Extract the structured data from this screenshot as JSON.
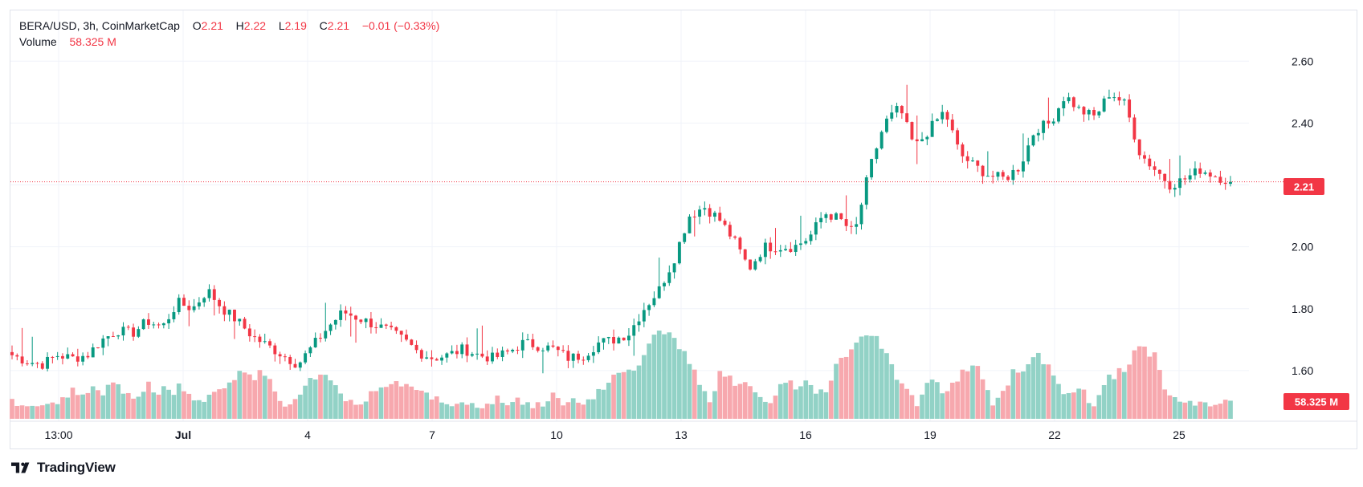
{
  "legend": {
    "symbol": "BERA/USD, 3h, CoinMarketCap",
    "o_label": "O",
    "o_value": "2.21",
    "h_label": "H",
    "h_value": "2.22",
    "l_label": "L",
    "l_value": "2.19",
    "c_label": "C",
    "c_value": "2.21",
    "change": "−0.01 (−0.33%)",
    "volume_label": "Volume",
    "volume_value": "58.325 M"
  },
  "price_label": "2.21",
  "volume_label_box": "58.325 M",
  "footer": {
    "brand": "TradingView"
  },
  "colors": {
    "up": "#089981",
    "down": "#f23645",
    "up_vol": "#92d2c6",
    "down_vol": "#f7a8ae",
    "grid": "#f0f3fa"
  },
  "chart_data": {
    "type": "candlestick",
    "price_axis_ticks": [
      "2.60",
      "2.40",
      "2.20",
      "2.00",
      "1.80",
      "1.60"
    ],
    "ylim": [
      1.47,
      2.72
    ],
    "time_axis_ticks": [
      {
        "label": "13:00",
        "bold": false
      },
      {
        "label": "Jul",
        "bold": true
      },
      {
        "label": "4",
        "bold": false
      },
      {
        "label": "7",
        "bold": false
      },
      {
        "label": "10",
        "bold": false
      },
      {
        "label": "13",
        "bold": false
      },
      {
        "label": "16",
        "bold": false
      },
      {
        "label": "19",
        "bold": false
      },
      {
        "label": "22",
        "bold": false
      },
      {
        "label": "25",
        "bold": false
      }
    ],
    "last_price": 2.21,
    "key_closes": [
      1.65,
      1.63,
      1.62,
      1.65,
      1.64,
      1.65,
      1.7,
      1.73,
      1.72,
      1.76,
      1.74,
      1.82,
      1.8,
      1.86,
      1.8,
      1.76,
      1.71,
      1.68,
      1.65,
      1.62,
      1.68,
      1.74,
      1.79,
      1.77,
      1.75,
      1.73,
      1.7,
      1.66,
      1.64,
      1.65,
      1.67,
      1.65,
      1.64,
      1.66,
      1.69,
      1.68,
      1.67,
      1.64,
      1.65,
      1.69,
      1.7,
      1.72,
      1.8,
      1.86,
      1.96,
      2.1,
      2.13,
      2.09,
      2.02,
      1.93,
      2.0,
      2.0,
      2.0,
      2.03,
      2.11,
      2.09,
      2.04,
      2.25,
      2.4,
      2.45,
      2.32,
      2.38,
      2.44,
      2.3,
      2.26,
      2.23,
      2.22,
      2.26,
      2.38,
      2.4,
      2.49,
      2.44,
      2.42,
      2.5,
      2.46,
      2.3,
      2.25,
      2.2,
      2.22,
      2.25,
      2.23,
      2.21
    ]
  }
}
